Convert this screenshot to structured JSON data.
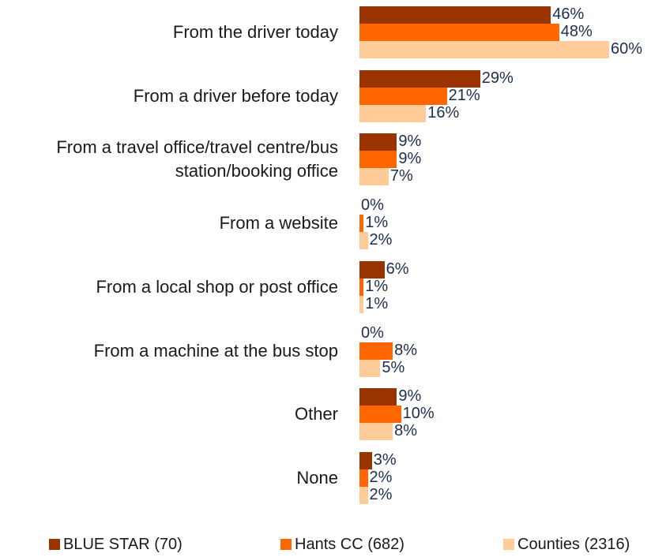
{
  "chart_data": {
    "type": "bar",
    "orientation": "horizontal",
    "categories": [
      "From the driver today",
      "From a driver before today",
      "From a travel office/travel centre/bus station/booking office",
      "From a website",
      "From a local shop or post office",
      "From a machine at the bus stop",
      "Other",
      "None"
    ],
    "series": [
      {
        "name": "BLUE STAR (70)",
        "color": "#993300",
        "values": [
          46,
          29,
          9,
          0,
          6,
          0,
          9,
          3
        ],
        "value_labels": [
          "46%",
          "29%",
          "9%",
          "0%",
          "6%",
          "0%",
          "9%",
          "3%"
        ]
      },
      {
        "name": "Hants CC (682)",
        "color": "#ff6600",
        "values": [
          48,
          21,
          9,
          1,
          1,
          8,
          10,
          2
        ],
        "value_labels": [
          "48%",
          "21%",
          "9%",
          "1%",
          "1%",
          "8%",
          "10%",
          "2%"
        ]
      },
      {
        "name": "Counties (2316)",
        "color": "#ffcc99",
        "values": [
          60,
          16,
          7,
          2,
          1,
          5,
          8,
          2
        ],
        "value_labels": [
          "60%",
          "16%",
          "7%",
          "2%",
          "1%",
          "5%",
          "8%",
          "2%"
        ]
      }
    ],
    "legend": "bottom"
  }
}
